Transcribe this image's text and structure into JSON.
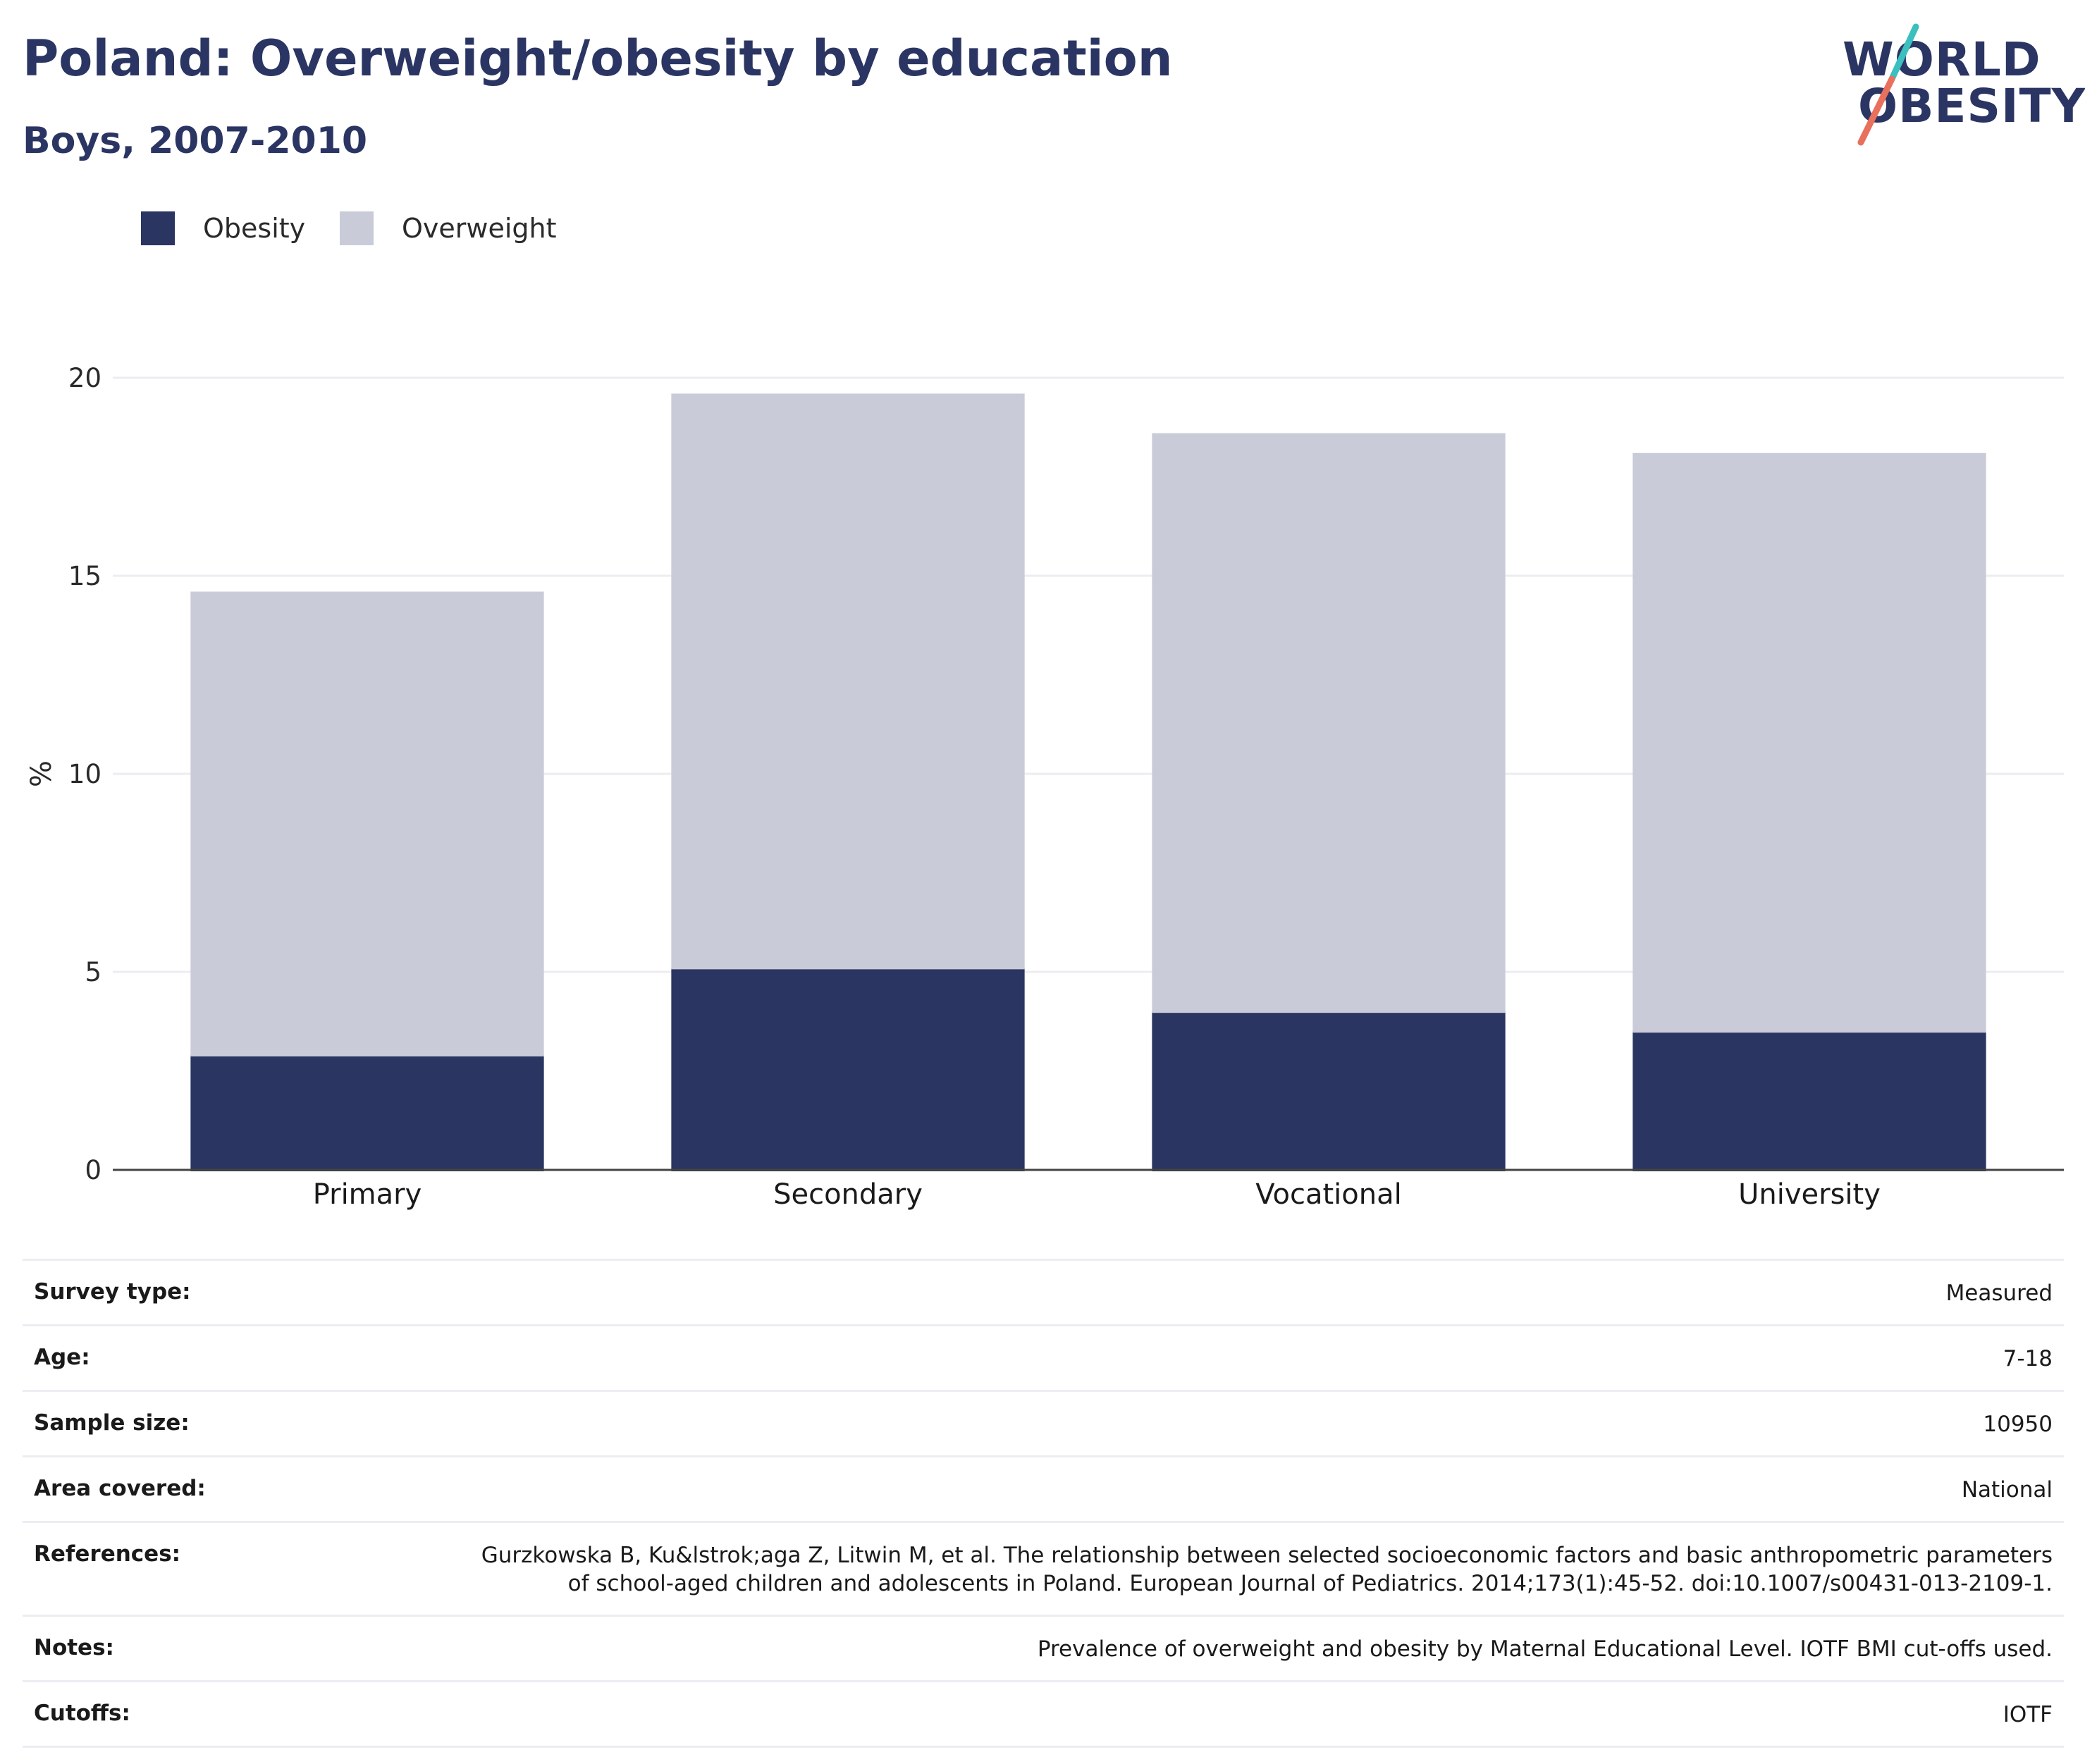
{
  "header": {
    "title": "Poland: Overweight/obesity by education",
    "subtitle": "Boys, 2007-2010"
  },
  "logo": {
    "line1": "WORLD",
    "line2": "OBESITY",
    "accent_teal": "#3bbfbf",
    "accent_coral": "#e8705c"
  },
  "legend": [
    {
      "label": "Obesity",
      "color": "#2a3561"
    },
    {
      "label": "Overweight",
      "color": "#c9ccd8"
    }
  ],
  "chart_data": {
    "type": "bar",
    "stacked": true,
    "categories": [
      "Primary",
      "Secondary",
      "Vocational",
      "University"
    ],
    "series": [
      {
        "name": "Obesity",
        "values": [
          2.9,
          5.1,
          4.0,
          3.5
        ],
        "color": "#2a3561"
      },
      {
        "name": "Overweight",
        "values": [
          11.7,
          14.5,
          14.6,
          14.6
        ],
        "color": "#c9ccd8"
      }
    ],
    "ylabel": "%",
    "ylim": [
      0,
      20
    ],
    "yticks": [
      0,
      5,
      10,
      15,
      20
    ],
    "grid": true,
    "legend_position": "top-left"
  },
  "info": [
    {
      "label": "Survey type:",
      "value": "Measured"
    },
    {
      "label": "Age:",
      "value": "7-18"
    },
    {
      "label": "Sample size:",
      "value": "10950"
    },
    {
      "label": "Area covered:",
      "value": "National"
    },
    {
      "label": "References:",
      "value": "Gurzkowska B, Ku&lstrok;aga Z, Litwin M, et al. The relationship between selected socioeconomic factors and basic anthropometric parameters of school-aged children and adolescents in Poland. European Journal of Pediatrics. 2014;173(1):45-52. doi:10.1007/s00431-013-2109-1."
    },
    {
      "label": "Notes:",
      "value": "Prevalence of overweight and obesity by Maternal Educational Level. IOTF BMI cut-offs used."
    },
    {
      "label": "Cutoffs:",
      "value": "IOTF"
    }
  ]
}
